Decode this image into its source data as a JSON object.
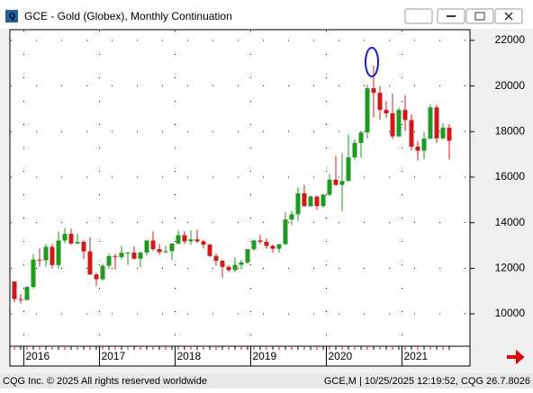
{
  "header": {
    "title": "GCE - Gold (Globex), Monthly Continuation"
  },
  "chart_data": {
    "type": "candlestick",
    "categories": [
      null,
      null,
      "2016",
      null,
      null,
      null,
      null,
      null,
      null,
      null,
      null,
      null,
      null,
      null,
      "2017",
      null,
      null,
      null,
      null,
      null,
      null,
      null,
      null,
      null,
      null,
      null,
      "2018",
      null,
      null,
      null,
      null,
      null,
      null,
      null,
      null,
      null,
      null,
      null,
      "2019",
      null,
      null,
      null,
      null,
      null,
      null,
      null,
      null,
      null,
      null,
      null,
      "2020",
      null,
      null,
      null,
      null,
      null,
      null,
      null,
      null,
      null,
      null,
      null,
      "2021",
      null,
      null,
      null,
      null,
      null,
      null,
      null
    ],
    "open": [
      11420,
      10650,
      10610,
      11180,
      12380,
      12350,
      12940,
      12140,
      13220,
      13510,
      13090,
      13160,
      12740,
      11730,
      11520,
      12110,
      12530,
      12490,
      12680,
      12690,
      12420,
      12690,
      13220,
      12840,
      12710,
      12750,
      13090,
      13450,
      13180,
      13270,
      13180,
      13040,
      12540,
      12330,
      12060,
      11920,
      12150,
      12260,
      12840,
      13220,
      13160,
      12980,
      12860,
      13060,
      14140,
      14370,
      15290,
      14720,
      15150,
      14730,
      15230,
      15890,
      15660,
      15830,
      16870,
      17500,
      17960,
      19900,
      19700,
      18950,
      18800,
      17790,
      18950,
      18500,
      17340,
      17160,
      17690,
      19060,
      17700,
      18170
    ],
    "high": [
      11430,
      10880,
      11240,
      12630,
      12870,
      13060,
      13070,
      13620,
      13770,
      13740,
      13520,
      13240,
      13370,
      11820,
      12200,
      12640,
      12640,
      12980,
      12720,
      12960,
      12730,
      13260,
      13620,
      13070,
      12990,
      13090,
      13660,
      13620,
      13660,
      13690,
      13260,
      13090,
      12640,
      12370,
      12140,
      12490,
      12380,
      12850,
      13260,
      13470,
      13300,
      13050,
      13060,
      14450,
      14520,
      15550,
      15660,
      15200,
      15190,
      15250,
      16130,
      16920,
      17050,
      17880,
      17650,
      18040,
      20060,
      20890,
      20000,
      19340,
      19660,
      19060,
      19600,
      18760,
      17590,
      17980,
      19190,
      19180,
      18360,
      18330
    ],
    "low": [
      10520,
      10460,
      10600,
      11110,
      12080,
      12070,
      11990,
      11990,
      13100,
      13030,
      13080,
      12410,
      11710,
      11230,
      11460,
      11970,
      11950,
      12390,
      12140,
      12390,
      12040,
      12560,
      12770,
      12600,
      12640,
      12360,
      13050,
      13070,
      13030,
      13120,
      12860,
      12500,
      12110,
      11600,
      11830,
      11830,
      11960,
      12210,
      12770,
      13070,
      12860,
      12690,
      12680,
      13010,
      13890,
      14070,
      14720,
      14720,
      14560,
      14660,
      15170,
      15630,
      14500,
      15830,
      16740,
      16850,
      17690,
      18630,
      18510,
      18600,
      17670,
      17750,
      18020,
      17170,
      16730,
      16790,
      17650,
      17500,
      17650,
      16770
    ],
    "close": [
      10650,
      10610,
      11180,
      12380,
      12350,
      12940,
      12140,
      13220,
      13510,
      13090,
      13160,
      12740,
      11730,
      11520,
      12110,
      12530,
      12490,
      12680,
      12690,
      12420,
      12690,
      13220,
      12840,
      12710,
      12750,
      13090,
      13450,
      13180,
      13270,
      13180,
      13040,
      12540,
      12330,
      12060,
      11920,
      12150,
      12260,
      12840,
      13220,
      13160,
      12980,
      12860,
      13060,
      14140,
      14370,
      15290,
      14720,
      15150,
      14730,
      15230,
      15890,
      15660,
      15830,
      16870,
      17500,
      17960,
      19900,
      19700,
      18950,
      18800,
      17790,
      18950,
      18500,
      17340,
      17160,
      17690,
      19060,
      17700,
      18170,
      17600
    ],
    "up_color": "#1e9a1e",
    "down_color": "#d01818",
    "ylim": [
      8580,
      22470
    ],
    "yticks": [
      10000,
      12000,
      14000,
      16000,
      18000,
      20000,
      22000
    ],
    "grid": true
  },
  "footer": {
    "left": "CQG Inc. © 2025 All rights reserved worldwide",
    "right": "GCE,M | 10/25/2025 12:19:52, CQG 26.7.8026"
  }
}
